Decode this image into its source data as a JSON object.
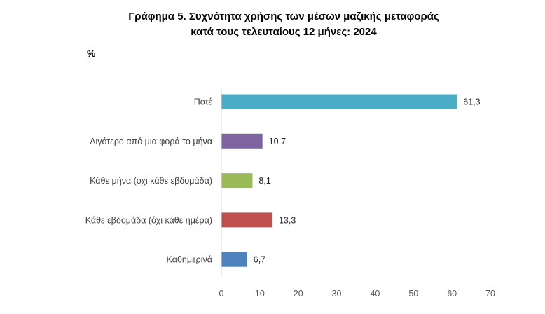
{
  "chart_data": {
    "type": "bar",
    "orientation": "horizontal",
    "title_lines": [
      "Γράφημα 5. Συχνότητα χρήσης των μέσων μαζικής μεταφοράς",
      "κατά τους τελευταίους 12 μήνες: 2024"
    ],
    "unit_label": "%",
    "categories": [
      "Ποτέ",
      "Λιγότερο από μια φορά το μήνα",
      "Κάθε μήνα (όχι κάθε εβδομάδα)",
      "Κάθε εβδομάδα (όχι κάθε ημέρα)",
      "Καθημερινά"
    ],
    "values": [
      61.3,
      10.7,
      8.1,
      13.3,
      6.7
    ],
    "value_labels": [
      "61,3",
      "10,7",
      "8,1",
      "13,3",
      "6,7"
    ],
    "colors": [
      "#4BACC6",
      "#8064A2",
      "#9BBB59",
      "#C0504D",
      "#4F81BD"
    ],
    "xlim": [
      0,
      70
    ],
    "xticks": [
      0,
      10,
      20,
      30,
      40,
      50,
      60,
      70
    ],
    "xlabel": "",
    "ylabel": "",
    "grid": false,
    "legend": "none"
  }
}
